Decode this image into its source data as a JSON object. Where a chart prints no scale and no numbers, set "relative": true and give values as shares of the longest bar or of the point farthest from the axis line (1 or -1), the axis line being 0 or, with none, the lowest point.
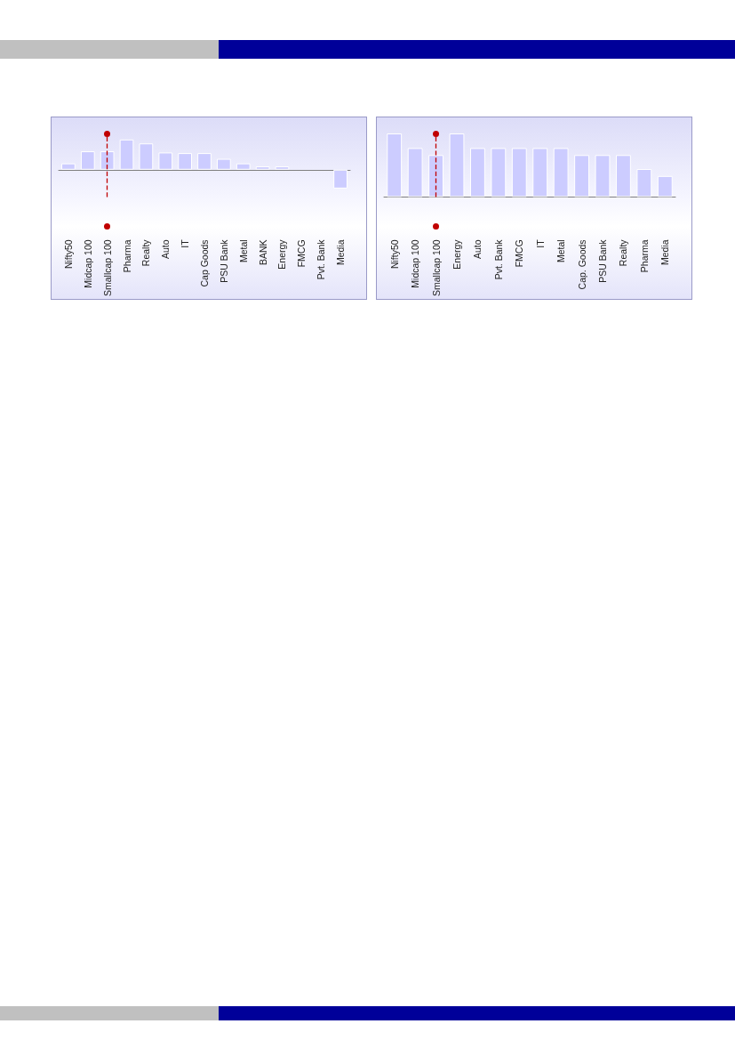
{
  "chart_data": [
    {
      "type": "bar",
      "relative": true,
      "color": "#ccccff",
      "grid": false,
      "categories": [
        "Nifty50",
        "Midcap 100",
        "Smallcap 100",
        "Pharma",
        "Realty",
        "Auto",
        "IT",
        "Cap Goods",
        "PSU Bank",
        "Metal",
        "BANK",
        "Energy",
        "FMCG",
        "Pvt. Bank",
        "Media"
      ],
      "values": [
        0.21,
        0.61,
        0.61,
        1,
        0.87,
        0.57,
        0.55,
        0.55,
        0.36,
        0.21,
        0.11,
        0.11,
        0,
        0,
        -0.62
      ],
      "ref_lines": [
        {
          "axis": "x",
          "value": "Smallcap 100",
          "color": "#c00000",
          "line_style": "dashed"
        }
      ]
    },
    {
      "type": "bar",
      "relative": true,
      "color": "#ccccff",
      "grid": false,
      "categories": [
        "Nifty50",
        "Midcap 100",
        "Smallcap 100",
        "Energy",
        "Auto",
        "Pvt. Bank",
        "FMCG",
        "IT",
        "Metal",
        "Cap. Goods",
        "PSU Bank",
        "Realty",
        "Pharma",
        "Media"
      ],
      "values": [
        1,
        0.77,
        0.66,
        1,
        0.77,
        0.77,
        0.77,
        0.77,
        0.77,
        0.66,
        0.66,
        0.66,
        0.44,
        0.33
      ],
      "ref_lines": [
        {
          "axis": "x",
          "value": "Smallcap 100",
          "color": "#c00000",
          "line_style": "dashed"
        }
      ]
    }
  ]
}
